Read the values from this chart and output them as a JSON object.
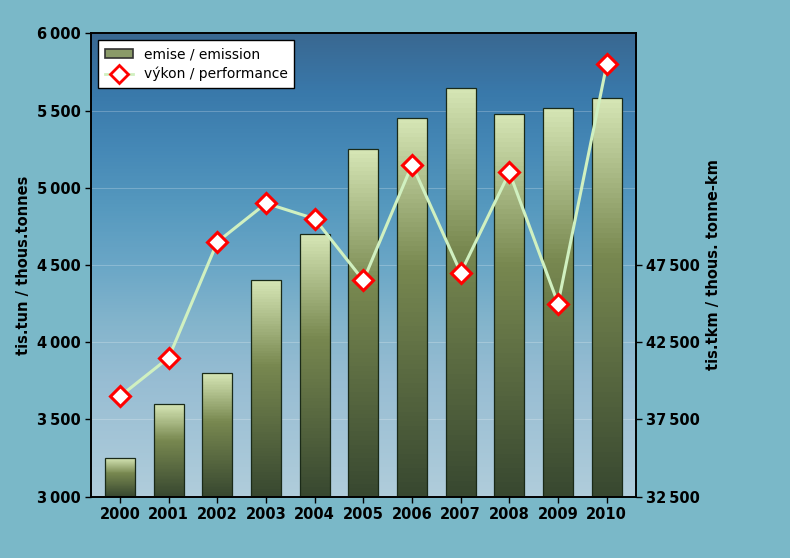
{
  "years": [
    2000,
    2001,
    2002,
    2003,
    2004,
    2005,
    2006,
    2007,
    2008,
    2009,
    2010
  ],
  "emissions": [
    3250,
    3600,
    3800,
    4400,
    4700,
    5250,
    5450,
    5650,
    5480,
    5520,
    5580
  ],
  "performance": [
    39000,
    41500,
    49000,
    51500,
    50500,
    46500,
    54000,
    47000,
    53500,
    45000,
    60500
  ],
  "ylim_left": [
    3000,
    6000
  ],
  "ylim_right": [
    32500,
    62500
  ],
  "yticks_left": [
    3000,
    3500,
    4000,
    4500,
    5000,
    5500,
    6000
  ],
  "yticks_right": [
    32500,
    37500,
    42500,
    47500
  ],
  "ylabel_left": "tis.tun / thous.tonnes",
  "ylabel_right": "tis.tkm / thous. tonne-km",
  "line_color": "#d0f0c0",
  "marker_face": "#ffffff",
  "marker_edge": "#ff0000",
  "bg_figure": "#7ab8c8",
  "legend_emission": "emise / emission",
  "legend_performance": "výkon / performance",
  "border_color": "#1a3a9a",
  "plot_bg_top": "#5a8090",
  "plot_bg_bottom": "#9acce0",
  "bar_dark": "#3a4a35",
  "bar_light": "#d8e8c0"
}
